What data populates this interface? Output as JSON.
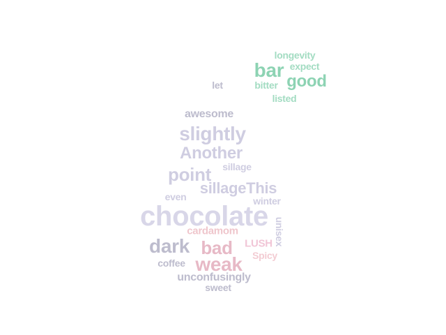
{
  "palette": {
    "green_light": "#a3dcc2",
    "green": "#8dd3b3",
    "grey_lavender": "#bdbccd",
    "lavender": "#cfcde1",
    "lavender_soft": "#d8d6e8",
    "rose": "#e7b9c6",
    "rose_light": "#efc6cc",
    "pink": "#f1c5d6",
    "peach": "#f3ccd3"
  },
  "words": [
    {
      "text": "longevity",
      "color": "green_light",
      "weight": 14
    },
    {
      "text": "bar",
      "color": "green",
      "weight": 28
    },
    {
      "text": "expect",
      "color": "green_light",
      "weight": 14
    },
    {
      "text": "good",
      "color": "green",
      "weight": 24
    },
    {
      "text": "let",
      "color": "grey_lavender",
      "weight": 14
    },
    {
      "text": "bitter",
      "color": "green_light",
      "weight": 14
    },
    {
      "text": "listed",
      "color": "green_light",
      "weight": 14
    },
    {
      "text": "awesome",
      "color": "grey_lavender",
      "weight": 16
    },
    {
      "text": "slightly",
      "color": "lavender",
      "weight": 28
    },
    {
      "text": "Another",
      "color": "lavender",
      "weight": 24
    },
    {
      "text": "point",
      "color": "lavender",
      "weight": 26
    },
    {
      "text": "sillage",
      "color": "lavender",
      "weight": 14
    },
    {
      "text": "sillageThis",
      "color": "lavender",
      "weight": 22
    },
    {
      "text": "even",
      "color": "lavender",
      "weight": 14
    },
    {
      "text": "winter",
      "color": "lavender",
      "weight": 14
    },
    {
      "text": "chocolate",
      "color": "lavender_soft",
      "weight": 40
    },
    {
      "text": "unisex",
      "color": "lavender",
      "weight": 14
    },
    {
      "text": "cardamom",
      "color": "rose_light",
      "weight": 15
    },
    {
      "text": "dark",
      "color": "grey_lavender",
      "weight": 28
    },
    {
      "text": "bad",
      "color": "rose",
      "weight": 26
    },
    {
      "text": "LUSH",
      "color": "pink",
      "weight": 15
    },
    {
      "text": "Spicy",
      "color": "peach",
      "weight": 14
    },
    {
      "text": "coffee",
      "color": "grey_lavender",
      "weight": 14
    },
    {
      "text": "weak",
      "color": "rose",
      "weight": 28
    },
    {
      "text": "unconfusingly",
      "color": "grey_lavender",
      "weight": 16
    },
    {
      "text": "sweet",
      "color": "grey_lavender",
      "weight": 14
    }
  ]
}
